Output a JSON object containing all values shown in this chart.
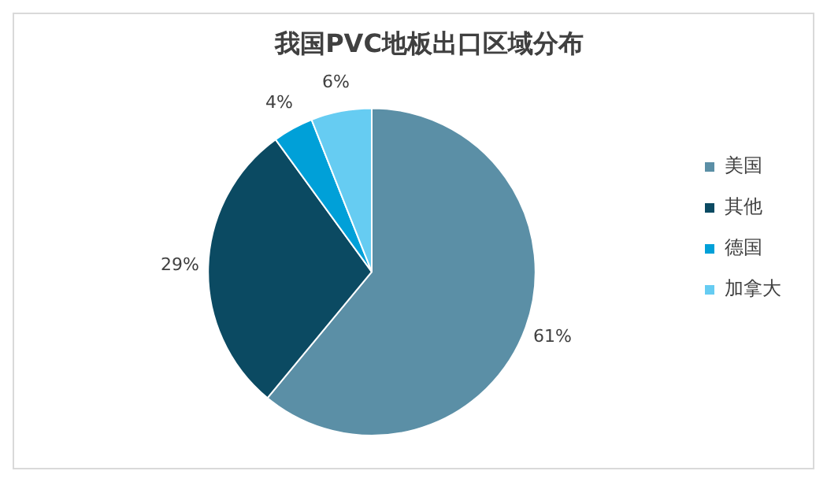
{
  "chart_data": {
    "type": "pie",
    "title": "我国PVC地板出口区域分布",
    "categories": [
      "美国",
      "其他",
      "德国",
      "加拿大"
    ],
    "values": [
      61,
      29,
      4,
      6
    ],
    "colors": [
      "#5b8fa6",
      "#0b4a62",
      "#00a0d8",
      "#66ccf2"
    ],
    "value_labels": [
      "61%",
      "29%",
      "4%",
      "6%"
    ],
    "legend": "right"
  }
}
